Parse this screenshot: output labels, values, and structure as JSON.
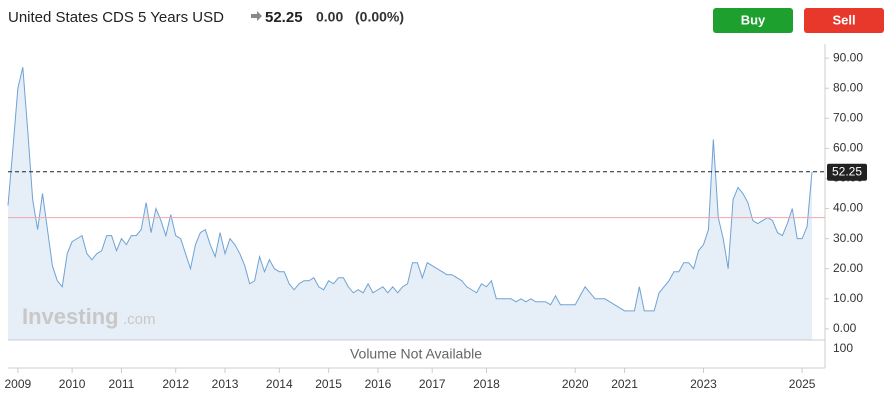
{
  "chart_data": {
    "type": "area",
    "title": "United States CDS 5 Years USD",
    "price": "52.25",
    "change": "0.00",
    "change_pct": "(0.00%)",
    "buy": "Buy",
    "sell": "Sell",
    "watermark": "Investing",
    "watermark_suffix": ".com",
    "volume_note": "Volume Not Available",
    "volume_tick": "100",
    "color": "#6fa3d4",
    "fill": "#e6eef7",
    "reference_value": 37,
    "reference_color": "#f2a7a7",
    "ylim": [
      -3.7,
      94.7
    ],
    "yticks": [
      {
        "value": 0,
        "label": "0.00"
      },
      {
        "value": 10,
        "label": "10.00"
      },
      {
        "value": 20,
        "label": "20.00"
      },
      {
        "value": 30,
        "label": "30.00"
      },
      {
        "value": 40,
        "label": "40.00"
      },
      {
        "value": 50,
        "label": "50.00"
      },
      {
        "value": 60,
        "label": "60.00"
      },
      {
        "value": 70,
        "label": "70.00"
      },
      {
        "value": 80,
        "label": "80.00"
      },
      {
        "value": 90,
        "label": "90.00"
      }
    ],
    "xticks": [
      {
        "value": 2,
        "label": "2009"
      },
      {
        "value": 13,
        "label": "2010"
      },
      {
        "value": 23,
        "label": "2011"
      },
      {
        "value": 34,
        "label": "2012"
      },
      {
        "value": 44,
        "label": "2013"
      },
      {
        "value": 55,
        "label": "2014"
      },
      {
        "value": 65,
        "label": "2015"
      },
      {
        "value": 75,
        "label": "2016"
      },
      {
        "value": 86,
        "label": "2017"
      },
      {
        "value": 97,
        "label": "2018"
      },
      {
        "value": 115,
        "label": "2020"
      },
      {
        "value": 125,
        "label": "2021"
      },
      {
        "value": 141,
        "label": "2023"
      },
      {
        "value": 161,
        "label": "2025"
      }
    ],
    "values": [
      41,
      60,
      80,
      87,
      66,
      43,
      33,
      45,
      33,
      21,
      16,
      14,
      25,
      29,
      30,
      31,
      25,
      23,
      25,
      26,
      31,
      31,
      26,
      30,
      28,
      31,
      31,
      33,
      42,
      32,
      40,
      36,
      31,
      38,
      31,
      30,
      25,
      20,
      28,
      32,
      33,
      28,
      24,
      32,
      25,
      30,
      28,
      25,
      21,
      15,
      16,
      24,
      19,
      23,
      20,
      19,
      19,
      15,
      13,
      15,
      16,
      16,
      17,
      14,
      13,
      16,
      15,
      17,
      17,
      14,
      12,
      13,
      12,
      15,
      12,
      13,
      14,
      12,
      14,
      12,
      14,
      15,
      22,
      22,
      17,
      22,
      21,
      20,
      19,
      18,
      18,
      17,
      16,
      14,
      13,
      12,
      15,
      14,
      16,
      10,
      10,
      10,
      10,
      9,
      10,
      9,
      10,
      9,
      9,
      9,
      8,
      11,
      8,
      8,
      8,
      8,
      11,
      14,
      12,
      10,
      10,
      10,
      9,
      8,
      7,
      6,
      6,
      6,
      14,
      6,
      6,
      6,
      12,
      14,
      16,
      19,
      19,
      22,
      22,
      20,
      26,
      28,
      33,
      63,
      37,
      30,
      20,
      43,
      47,
      45,
      42,
      36,
      35,
      36,
      37,
      36,
      32,
      31,
      35,
      40,
      30,
      30,
      34,
      52.25
    ]
  }
}
